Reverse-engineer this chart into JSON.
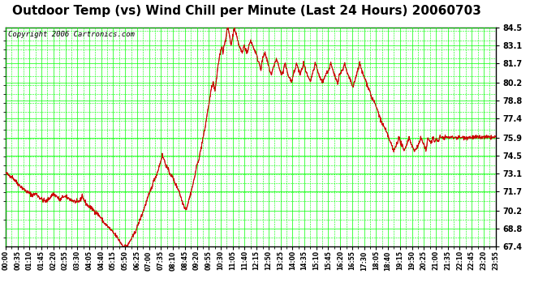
{
  "title": "Outdoor Temp (vs) Wind Chill per Minute (Last 24 Hours) 20060703",
  "copyright": "Copyright 2006 Cartronics.com",
  "yticks": [
    67.4,
    68.8,
    70.2,
    71.7,
    73.1,
    74.5,
    75.9,
    77.4,
    78.8,
    80.2,
    81.7,
    83.1,
    84.5
  ],
  "ymin": 67.4,
  "ymax": 84.5,
  "background_color": "#ffffff",
  "plot_bg_color": "#ffffff",
  "grid_color": "#00ff00",
  "line_color": "#cc0000",
  "title_fontsize": 11,
  "copyright_fontsize": 6.5,
  "xtick_labels": [
    "00:00",
    "00:35",
    "01:10",
    "01:45",
    "02:20",
    "02:55",
    "03:30",
    "04:05",
    "04:40",
    "05:15",
    "05:50",
    "06:25",
    "07:00",
    "07:35",
    "08:10",
    "08:45",
    "09:20",
    "09:55",
    "10:30",
    "11:05",
    "11:40",
    "12:15",
    "12:50",
    "13:25",
    "14:00",
    "14:35",
    "15:10",
    "15:45",
    "16:20",
    "16:55",
    "17:30",
    "18:05",
    "18:40",
    "19:15",
    "19:50",
    "20:25",
    "21:00",
    "21:35",
    "22:10",
    "22:45",
    "23:20",
    "23:55"
  ],
  "num_points": 1440,
  "keypoints": [
    [
      0,
      73.1
    ],
    [
      20,
      72.8
    ],
    [
      35,
      72.3
    ],
    [
      60,
      71.7
    ],
    [
      80,
      71.4
    ],
    [
      90,
      71.5
    ],
    [
      100,
      71.2
    ],
    [
      110,
      71.0
    ],
    [
      120,
      70.9
    ],
    [
      130,
      71.2
    ],
    [
      140,
      71.5
    ],
    [
      150,
      71.3
    ],
    [
      160,
      71.0
    ],
    [
      170,
      71.3
    ],
    [
      180,
      71.2
    ],
    [
      195,
      71.0
    ],
    [
      210,
      70.8
    ],
    [
      220,
      71.0
    ],
    [
      225,
      71.4
    ],
    [
      230,
      71.0
    ],
    [
      240,
      70.6
    ],
    [
      260,
      70.2
    ],
    [
      275,
      69.8
    ],
    [
      290,
      69.2
    ],
    [
      305,
      68.8
    ],
    [
      315,
      68.5
    ],
    [
      325,
      68.2
    ],
    [
      335,
      67.8
    ],
    [
      340,
      67.6
    ],
    [
      345,
      67.4
    ],
    [
      350,
      67.4
    ],
    [
      360,
      67.5
    ],
    [
      365,
      67.8
    ],
    [
      375,
      68.2
    ],
    [
      385,
      68.8
    ],
    [
      395,
      69.5
    ],
    [
      405,
      70.2
    ],
    [
      415,
      71.0
    ],
    [
      425,
      71.7
    ],
    [
      435,
      72.5
    ],
    [
      445,
      73.1
    ],
    [
      455,
      74.0
    ],
    [
      460,
      74.5
    ],
    [
      465,
      74.2
    ],
    [
      470,
      73.8
    ],
    [
      480,
      73.2
    ],
    [
      490,
      72.8
    ],
    [
      500,
      72.2
    ],
    [
      510,
      71.7
    ],
    [
      515,
      71.2
    ],
    [
      520,
      70.8
    ],
    [
      525,
      70.5
    ],
    [
      530,
      70.3
    ],
    [
      535,
      70.7
    ],
    [
      540,
      71.2
    ],
    [
      545,
      71.7
    ],
    [
      550,
      72.2
    ],
    [
      555,
      72.8
    ],
    [
      560,
      73.5
    ],
    [
      565,
      74.0
    ],
    [
      570,
      74.5
    ],
    [
      575,
      75.2
    ],
    [
      580,
      75.9
    ],
    [
      585,
      76.5
    ],
    [
      590,
      77.4
    ],
    [
      595,
      78.2
    ],
    [
      600,
      79.0
    ],
    [
      605,
      79.8
    ],
    [
      610,
      80.2
    ],
    [
      615,
      79.5
    ],
    [
      618,
      80.2
    ],
    [
      622,
      81.0
    ],
    [
      625,
      81.7
    ],
    [
      630,
      82.5
    ],
    [
      635,
      83.1
    ],
    [
      638,
      82.5
    ],
    [
      642,
      83.1
    ],
    [
      645,
      83.5
    ],
    [
      648,
      83.8
    ],
    [
      650,
      84.2
    ],
    [
      652,
      84.5
    ],
    [
      655,
      84.2
    ],
    [
      658,
      83.8
    ],
    [
      662,
      83.1
    ],
    [
      665,
      83.5
    ],
    [
      668,
      84.0
    ],
    [
      672,
      84.5
    ],
    [
      675,
      84.2
    ],
    [
      678,
      83.8
    ],
    [
      682,
      83.5
    ],
    [
      685,
      83.1
    ],
    [
      690,
      82.8
    ],
    [
      695,
      82.5
    ],
    [
      700,
      83.1
    ],
    [
      705,
      82.8
    ],
    [
      710,
      82.5
    ],
    [
      715,
      83.1
    ],
    [
      720,
      83.5
    ],
    [
      725,
      83.1
    ],
    [
      730,
      82.8
    ],
    [
      735,
      82.5
    ],
    [
      740,
      82.0
    ],
    [
      745,
      81.7
    ],
    [
      750,
      81.2
    ],
    [
      752,
      81.7
    ],
    [
      755,
      82.0
    ],
    [
      760,
      82.5
    ],
    [
      765,
      82.2
    ],
    [
      770,
      81.7
    ],
    [
      775,
      81.2
    ],
    [
      780,
      80.8
    ],
    [
      785,
      81.2
    ],
    [
      790,
      81.7
    ],
    [
      795,
      82.0
    ],
    [
      800,
      81.7
    ],
    [
      805,
      81.2
    ],
    [
      810,
      80.8
    ],
    [
      815,
      81.0
    ],
    [
      820,
      81.7
    ],
    [
      825,
      81.2
    ],
    [
      830,
      80.8
    ],
    [
      840,
      80.2
    ],
    [
      845,
      80.8
    ],
    [
      850,
      81.2
    ],
    [
      855,
      81.7
    ],
    [
      860,
      81.2
    ],
    [
      865,
      80.8
    ],
    [
      870,
      81.2
    ],
    [
      875,
      81.7
    ],
    [
      880,
      81.2
    ],
    [
      885,
      80.8
    ],
    [
      890,
      80.5
    ],
    [
      895,
      80.2
    ],
    [
      900,
      80.8
    ],
    [
      905,
      81.2
    ],
    [
      910,
      81.7
    ],
    [
      915,
      81.2
    ],
    [
      920,
      80.8
    ],
    [
      925,
      80.5
    ],
    [
      930,
      80.2
    ],
    [
      940,
      80.8
    ],
    [
      950,
      81.2
    ],
    [
      955,
      81.7
    ],
    [
      960,
      81.2
    ],
    [
      965,
      80.8
    ],
    [
      970,
      80.5
    ],
    [
      975,
      80.2
    ],
    [
      980,
      80.8
    ],
    [
      990,
      81.2
    ],
    [
      995,
      81.7
    ],
    [
      1000,
      81.2
    ],
    [
      1005,
      80.8
    ],
    [
      1010,
      80.5
    ],
    [
      1015,
      80.2
    ],
    [
      1020,
      79.8
    ],
    [
      1025,
      80.2
    ],
    [
      1030,
      80.8
    ],
    [
      1035,
      81.2
    ],
    [
      1040,
      81.7
    ],
    [
      1045,
      81.2
    ],
    [
      1050,
      80.8
    ],
    [
      1055,
      80.5
    ],
    [
      1060,
      80.2
    ],
    [
      1065,
      79.8
    ],
    [
      1070,
      79.5
    ],
    [
      1075,
      79.0
    ],
    [
      1080,
      78.8
    ],
    [
      1085,
      78.5
    ],
    [
      1090,
      78.2
    ],
    [
      1095,
      77.8
    ],
    [
      1100,
      77.4
    ],
    [
      1105,
      77.0
    ],
    [
      1110,
      76.8
    ],
    [
      1115,
      76.5
    ],
    [
      1120,
      76.2
    ],
    [
      1125,
      75.9
    ],
    [
      1130,
      75.5
    ],
    [
      1135,
      75.2
    ],
    [
      1140,
      74.8
    ],
    [
      1145,
      75.2
    ],
    [
      1150,
      75.5
    ],
    [
      1155,
      75.9
    ],
    [
      1160,
      75.5
    ],
    [
      1165,
      75.2
    ],
    [
      1170,
      74.8
    ],
    [
      1175,
      75.2
    ],
    [
      1180,
      75.5
    ],
    [
      1185,
      75.9
    ],
    [
      1190,
      75.5
    ],
    [
      1195,
      75.2
    ],
    [
      1200,
      74.8
    ],
    [
      1210,
      75.2
    ],
    [
      1215,
      75.5
    ],
    [
      1220,
      75.9
    ],
    [
      1225,
      75.5
    ],
    [
      1230,
      75.2
    ],
    [
      1235,
      74.8
    ],
    [
      1240,
      75.9
    ],
    [
      1250,
      75.5
    ],
    [
      1255,
      75.9
    ],
    [
      1260,
      75.5
    ],
    [
      1265,
      75.9
    ],
    [
      1270,
      75.5
    ],
    [
      1275,
      75.9
    ],
    [
      1280,
      75.9
    ],
    [
      1290,
      75.9
    ],
    [
      1300,
      75.9
    ],
    [
      1310,
      75.9
    ],
    [
      1320,
      75.9
    ],
    [
      1330,
      75.9
    ],
    [
      1340,
      75.9
    ],
    [
      1350,
      75.9
    ],
    [
      1360,
      75.9
    ],
    [
      1370,
      75.9
    ],
    [
      1380,
      75.9
    ],
    [
      1390,
      75.9
    ],
    [
      1400,
      75.9
    ],
    [
      1410,
      75.9
    ],
    [
      1420,
      75.9
    ],
    [
      1430,
      75.9
    ],
    [
      1439,
      75.9
    ]
  ]
}
